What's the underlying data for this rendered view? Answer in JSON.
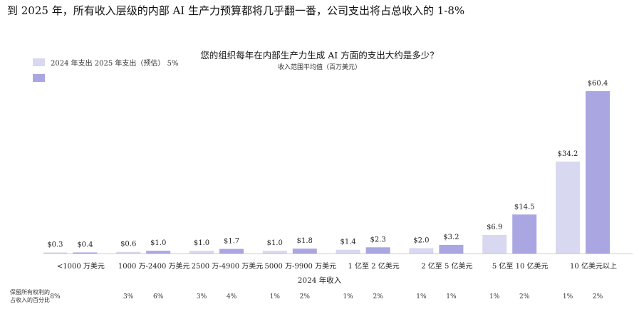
{
  "headline": "到 2025 年，所有收入层级的内部 AI 生产力预算都将几乎翻一番，公司支出将占总收入的 1-8%",
  "question": "您的组织每年在内部生产力生成 AI 方面的支出大约是多少？",
  "subquestion": "收入范围平均值（百万美元）",
  "legend": {
    "label": "2024 年支出 2025 年支出（预估） 5%",
    "color_2024": "#d8d8f0",
    "color_2025": "#a9a6e1"
  },
  "share_label": "保留所有权利的占收入的百分比",
  "chart_data": {
    "type": "bar",
    "xlabel": "2024 年收入",
    "categories": [
      "<1000 万美元",
      "1000 万-2400 万美元",
      "2500 万-4900 万美元",
      "5000 万-9900 万美元",
      "1 亿至 2 亿美元",
      "2 亿至 5 亿美元",
      "5 亿至 10 亿美元",
      "10 亿美元以上"
    ],
    "series": [
      {
        "values": [
          0.3,
          0.6,
          1.0,
          1.0,
          1.4,
          2.0,
          6.9,
          34.2
        ],
        "labels": [
          "$0.3",
          "$0.6",
          "$1.0",
          "$1.0",
          "$1.4",
          "$2.0",
          "$6.9",
          "$34.2"
        ],
        "share": [
          "8%",
          "3%",
          "3%",
          "1%",
          "1%",
          "1%",
          "1%",
          "1%"
        ],
        "color": "#d8d8f0"
      },
      {
        "values": [
          0.4,
          1.0,
          1.7,
          1.8,
          2.3,
          3.2,
          14.5,
          60.4
        ],
        "labels": [
          "$0.4",
          "$1.0",
          "$1.7",
          "$1.8",
          "$2.3",
          "$3.2",
          "$14.5",
          "$60.4"
        ],
        "share": [
          "",
          "6%",
          "4%",
          "2%",
          "2%",
          "1%",
          "2%",
          "2%"
        ],
        "color": "#a9a6e1"
      }
    ],
    "ylim": [
      0,
      60.4
    ]
  }
}
